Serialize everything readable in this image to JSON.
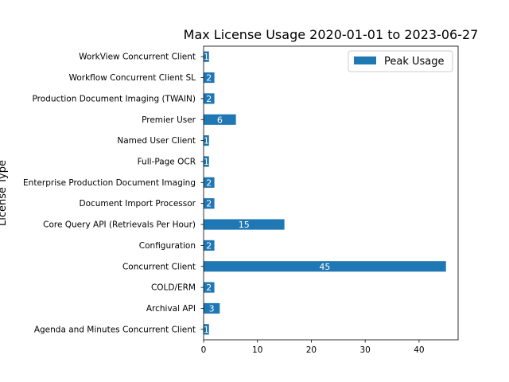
{
  "chart_data": {
    "type": "bar",
    "orientation": "horizontal",
    "title": "Max License Usage 2020-01-01 to 2023-06-27",
    "xlabel": "",
    "ylabel": "License Type",
    "xlim": [
      0,
      47.25
    ],
    "xticks": [
      0,
      10,
      20,
      30,
      40
    ],
    "grid": false,
    "legend_position": "top-right",
    "bar_color": "#1f77b4",
    "categories": [
      "Agenda and Minutes Concurrent Client",
      "Archival API",
      "COLD/ERM",
      "Concurrent Client",
      "Configuration",
      "Core Query API (Retrievals Per Hour)",
      "Document Import Processor",
      "Enterprise Production Document Imaging",
      "Full-Page OCR",
      "Named User Client",
      "Premier User",
      "Production Document Imaging (TWAIN)",
      "Workflow Concurrent Client SL",
      "WorkView Concurrent Client"
    ],
    "series": [
      {
        "name": "Peak Usage",
        "values": [
          1,
          3,
          2,
          45,
          2,
          15,
          2,
          2,
          1,
          1,
          6,
          2,
          2,
          1
        ]
      }
    ]
  }
}
